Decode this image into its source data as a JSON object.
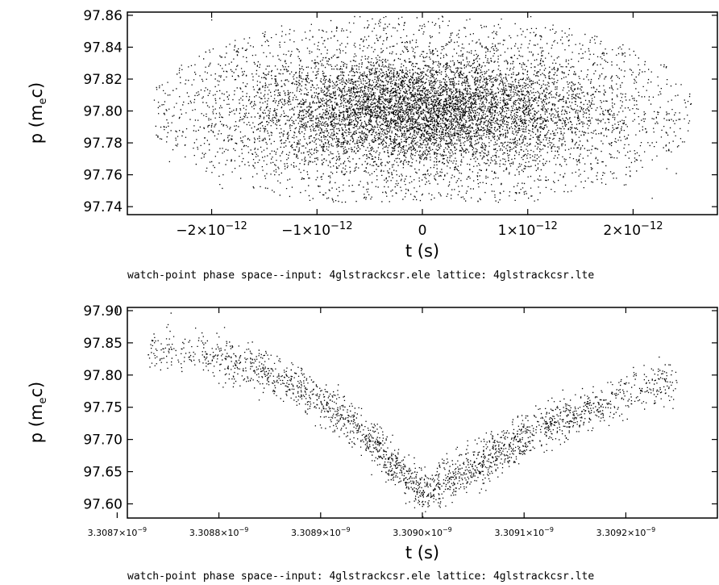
{
  "chart_data": [
    {
      "type": "scatter",
      "title": "",
      "xlabel": "t (s)",
      "ylabel": "p (m_e c)",
      "caption": "watch-point phase space--input: 4glstrackcsr.ele   lattice: 4glstrackcsr.lte",
      "xlim": [
        -2.8e-12,
        2.8e-12
      ],
      "ylim": [
        97.735,
        97.862
      ],
      "x_ticks": [
        {
          "value": -2e-12,
          "label": "−2×10",
          "exp": "−12"
        },
        {
          "value": -1e-12,
          "label": "−1×10",
          "exp": "−12"
        },
        {
          "value": 0,
          "label": "0",
          "exp": ""
        },
        {
          "value": 1e-12,
          "label": "1×10",
          "exp": "−12"
        },
        {
          "value": 2e-12,
          "label": "2×10",
          "exp": "−12"
        }
      ],
      "y_ticks": [
        {
          "value": 97.74,
          "label": "97.74"
        },
        {
          "value": 97.76,
          "label": "97.76"
        },
        {
          "value": 97.78,
          "label": "97.78"
        },
        {
          "value": 97.8,
          "label": "97.80"
        },
        {
          "value": 97.82,
          "label": "97.82"
        },
        {
          "value": 97.84,
          "label": "97.84"
        },
        {
          "value": 97.86,
          "label": "97.86"
        }
      ],
      "distribution": {
        "shape": "elliptical gaussian",
        "x_center": 0,
        "x_sigma": 8.5e-13,
        "x_range": [
          -2.55e-12,
          2.55e-12
        ],
        "y_center": 97.8,
        "y_sigma": 0.018,
        "y_range": [
          97.743,
          97.86
        ]
      },
      "point_color": "#000000"
    },
    {
      "type": "scatter",
      "title": "",
      "xlabel": "t (s)",
      "ylabel": "p (m_e c)",
      "caption": "watch-point phase space--input: 4glstrackcsr.ele   lattice: 4glstrackcsr.lte",
      "xlim": [
        3.30871e-09,
        3.30929e-09
      ],
      "ylim": [
        97.578,
        97.905
      ],
      "x_ticks": [
        {
          "value": 3.3087e-09,
          "label": "3.3087×10",
          "exp": "−9"
        },
        {
          "value": 3.3088e-09,
          "label": "3.3088×10",
          "exp": "−9"
        },
        {
          "value": 3.3089e-09,
          "label": "3.3089×10",
          "exp": "−9"
        },
        {
          "value": 3.309e-09,
          "label": "3.3090×10",
          "exp": "−9"
        },
        {
          "value": 3.3091e-09,
          "label": "3.3091×10",
          "exp": "−9"
        },
        {
          "value": 3.3092e-09,
          "label": "3.3092×10",
          "exp": "−9"
        }
      ],
      "y_ticks": [
        {
          "value": 97.6,
          "label": "97.60"
        },
        {
          "value": 97.65,
          "label": "97.65"
        },
        {
          "value": 97.7,
          "label": "97.70"
        },
        {
          "value": 97.75,
          "label": "97.75"
        },
        {
          "value": 97.8,
          "label": "97.80"
        },
        {
          "value": 97.85,
          "label": "97.85"
        },
        {
          "value": 97.9,
          "label": "97.90"
        }
      ],
      "distribution": {
        "shape": "V-shaped chirped band",
        "x_range": [
          3.30873e-09,
          3.30925e-09
        ],
        "x_density_center": 3.30901e-09,
        "x_sigma": 1e-13,
        "ridge": [
          {
            "t": 3.30873e-09,
            "p": 97.84
          },
          {
            "t": 3.30878e-09,
            "p": 97.836
          },
          {
            "t": 3.30883e-09,
            "p": 97.815
          },
          {
            "t": 3.30888e-09,
            "p": 97.78
          },
          {
            "t": 3.30893e-09,
            "p": 97.725
          },
          {
            "t": 3.30897e-09,
            "p": 97.665
          },
          {
            "t": 3.309e-09,
            "p": 97.62
          },
          {
            "t": 3.30903e-09,
            "p": 97.64
          },
          {
            "t": 3.30907e-09,
            "p": 97.675
          },
          {
            "t": 3.30912e-09,
            "p": 97.72
          },
          {
            "t": 3.30917e-09,
            "p": 97.75
          },
          {
            "t": 3.30921e-09,
            "p": 97.78
          },
          {
            "t": 3.30925e-09,
            "p": 97.79
          }
        ],
        "band_half_width_p": 0.022
      },
      "point_color": "#000000"
    }
  ]
}
